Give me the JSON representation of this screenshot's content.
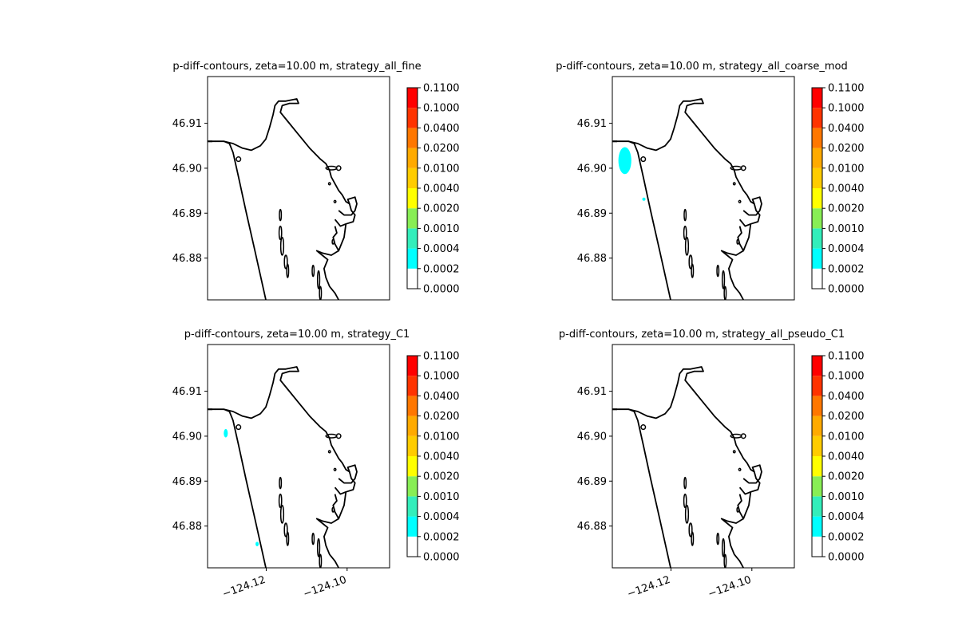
{
  "chart_data": [
    {
      "type": "contour",
      "title": "p-diff-contours, zeta=10.00 m, strategy_all_fine",
      "y_ticks": [
        "46.88",
        "46.89",
        "46.90",
        "46.91"
      ],
      "x_ticks": [],
      "colorbar_levels": [
        "0.0000",
        "0.0002",
        "0.0004",
        "0.0010",
        "0.0020",
        "0.0040",
        "0.0100",
        "0.0200",
        "0.0400",
        "0.1000",
        "0.1100"
      ],
      "filled_regions": []
    },
    {
      "type": "contour",
      "title": "p-diff-contours, zeta=10.00 m, strategy_all_coarse_mod",
      "y_ticks": [
        "46.88",
        "46.89",
        "46.90",
        "46.91"
      ],
      "x_ticks": [],
      "colorbar_levels": [
        "0.0000",
        "0.0002",
        "0.0004",
        "0.0010",
        "0.0020",
        "0.0040",
        "0.0100",
        "0.0200",
        "0.0400",
        "0.1000",
        "0.1100"
      ],
      "filled_regions": [
        {
          "level_band": "0.0002-0.0004",
          "lon_range": [
            -124.133,
            -124.1298
          ],
          "lat_range": [
            46.8987,
            46.9047
          ]
        },
        {
          "level_band": "0.0002-0.0004",
          "lon_range": [
            -124.1269,
            -124.1265
          ],
          "lat_range": [
            46.8928,
            46.8934
          ]
        }
      ]
    },
    {
      "type": "contour",
      "title": "p-diff-contours, zeta=10.00 m, strategy_C1",
      "y_ticks": [
        "46.88",
        "46.89",
        "46.90",
        "46.91"
      ],
      "x_ticks": [
        "−124.12",
        "−124.10"
      ],
      "colorbar_levels": [
        "0.0000",
        "0.0002",
        "0.0004",
        "0.0010",
        "0.0020",
        "0.0040",
        "0.0100",
        "0.0200",
        "0.0400",
        "0.1000",
        "0.1100"
      ],
      "filled_regions": [
        {
          "level_band": "0.0002-0.0004",
          "lon_range": [
            -124.1305,
            -124.1295
          ],
          "lat_range": [
            46.8997,
            46.9016
          ]
        },
        {
          "level_band": "0.0002-0.0004",
          "lon_range": [
            -124.1225,
            -124.122
          ],
          "lat_range": [
            46.8755,
            46.8765
          ]
        }
      ]
    },
    {
      "type": "contour",
      "title": "p-diff-contours, zeta=10.00 m, strategy_all_pseudo_C1",
      "y_ticks": [
        "46.88",
        "46.89",
        "46.90",
        "46.91"
      ],
      "x_ticks": [
        "−124.12",
        "−124.10"
      ],
      "colorbar_levels": [
        "0.0000",
        "0.0002",
        "0.0004",
        "0.0010",
        "0.0020",
        "0.0040",
        "0.0100",
        "0.0200",
        "0.0400",
        "0.1000",
        "0.1100"
      ],
      "filled_regions": []
    }
  ],
  "colorbar_colors": [
    "#ffffff",
    "#00ffff",
    "#33eebb",
    "#88ee55",
    "#ffff00",
    "#ffcc00",
    "#ffaa00",
    "#ff7700",
    "#ff3300",
    "#ff0000"
  ],
  "fill_color": "#00ffff",
  "coast_color": "#000000"
}
